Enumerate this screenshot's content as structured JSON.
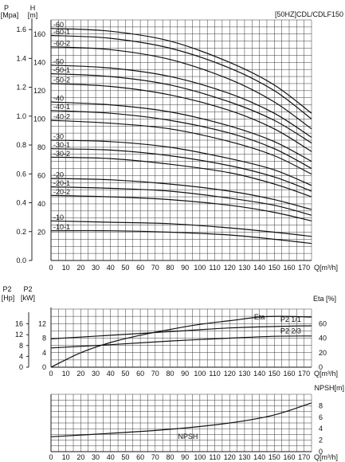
{
  "title": "[50HZ]CDL/CDLF150",
  "chart_data": [
    {
      "type": "line",
      "name": "head",
      "title": "[50HZ]CDL/CDLF150",
      "xlabel": "Q[m³/h]",
      "x_ticks": [
        0,
        10,
        20,
        30,
        40,
        50,
        60,
        70,
        80,
        90,
        100,
        110,
        120,
        130,
        140,
        150,
        160,
        170
      ],
      "xlim": [
        0,
        175
      ],
      "y_left_label": [
        "P",
        "[Mpa]"
      ],
      "y_left_ticks": [
        "0.0",
        "0.2",
        "0.4",
        "0.6",
        "0.8",
        "1.0",
        "1.2",
        "1.4",
        "1.6"
      ],
      "y_right_label": [
        "H",
        "[m]"
      ],
      "y_right_ticks": [
        "20",
        "40",
        "60",
        "80",
        "100",
        "120",
        "140",
        "160"
      ],
      "ylim": [
        0,
        170
      ],
      "grid": true,
      "series": [
        {
          "name": "-60",
          "points": [
            [
              0,
              164
            ],
            [
              40,
              162
            ],
            [
              80,
              155
            ],
            [
              120,
              140
            ],
            [
              150,
              124
            ],
            [
              175,
              104
            ]
          ]
        },
        {
          "name": "-60-1",
          "points": [
            [
              0,
              159
            ],
            [
              40,
              157
            ],
            [
              80,
              150
            ],
            [
              120,
              136
            ],
            [
              150,
              120
            ],
            [
              175,
              100
            ]
          ]
        },
        {
          "name": "-60-2",
          "points": [
            [
              0,
              151
            ],
            [
              40,
              149
            ],
            [
              80,
              142
            ],
            [
              120,
              128
            ],
            [
              150,
              112
            ],
            [
              175,
              93
            ]
          ]
        },
        {
          "name": "-50",
          "points": [
            [
              0,
              138
            ],
            [
              40,
              136
            ],
            [
              80,
              130
            ],
            [
              120,
              118
            ],
            [
              150,
              104
            ],
            [
              175,
              87
            ]
          ]
        },
        {
          "name": "-50-1",
          "points": [
            [
              0,
              132
            ],
            [
              40,
              130
            ],
            [
              80,
              124
            ],
            [
              120,
              112
            ],
            [
              150,
              99
            ],
            [
              175,
              83
            ]
          ]
        },
        {
          "name": "-50-2",
          "points": [
            [
              0,
              125
            ],
            [
              40,
              123
            ],
            [
              80,
              117
            ],
            [
              120,
              106
            ],
            [
              150,
              93
            ],
            [
              175,
              77
            ]
          ]
        },
        {
          "name": "-40",
          "points": [
            [
              0,
              112
            ],
            [
              40,
              110
            ],
            [
              80,
              105
            ],
            [
              120,
              95
            ],
            [
              150,
              84
            ],
            [
              175,
              70
            ]
          ]
        },
        {
          "name": "-40-1",
          "points": [
            [
              0,
              106
            ],
            [
              40,
              104
            ],
            [
              80,
              99
            ],
            [
              120,
              90
            ],
            [
              150,
              79
            ],
            [
              175,
              65
            ]
          ]
        },
        {
          "name": "-40-2",
          "points": [
            [
              0,
              99
            ],
            [
              40,
              97
            ],
            [
              80,
              93
            ],
            [
              120,
              84
            ],
            [
              150,
              74
            ],
            [
              175,
              61
            ]
          ]
        },
        {
          "name": "-30",
          "points": [
            [
              0,
              85
            ],
            [
              40,
              84
            ],
            [
              80,
              80
            ],
            [
              120,
              72
            ],
            [
              150,
              64
            ],
            [
              175,
              53
            ]
          ]
        },
        {
          "name": "-30-1",
          "points": [
            [
              0,
              79
            ],
            [
              40,
              78
            ],
            [
              80,
              74
            ],
            [
              120,
              67
            ],
            [
              150,
              59
            ],
            [
              175,
              49
            ]
          ]
        },
        {
          "name": "-30-2",
          "points": [
            [
              0,
              73
            ],
            [
              40,
              72
            ],
            [
              80,
              68
            ],
            [
              120,
              62
            ],
            [
              150,
              54
            ],
            [
              175,
              45
            ]
          ]
        },
        {
          "name": "-20",
          "points": [
            [
              0,
              58
            ],
            [
              40,
              57
            ],
            [
              80,
              54
            ],
            [
              120,
              49
            ],
            [
              150,
              43
            ],
            [
              175,
              36
            ]
          ]
        },
        {
          "name": "-20-1",
          "points": [
            [
              0,
              52
            ],
            [
              40,
              51
            ],
            [
              80,
              49
            ],
            [
              120,
              44
            ],
            [
              150,
              39
            ],
            [
              175,
              32
            ]
          ]
        },
        {
          "name": "-20-2",
          "points": [
            [
              0,
              46
            ],
            [
              40,
              45
            ],
            [
              80,
              43
            ],
            [
              120,
              39
            ],
            [
              150,
              34
            ],
            [
              175,
              28
            ]
          ]
        },
        {
          "name": "-10",
          "points": [
            [
              0,
              28
            ],
            [
              40,
              27
            ],
            [
              80,
              26
            ],
            [
              120,
              23
            ],
            [
              150,
              20
            ],
            [
              175,
              17
            ]
          ]
        },
        {
          "name": "-10-1",
          "points": [
            [
              0,
              21
            ],
            [
              40,
              21
            ],
            [
              80,
              20
            ],
            [
              120,
              18
            ],
            [
              150,
              15
            ],
            [
              175,
              12
            ]
          ]
        }
      ]
    },
    {
      "type": "line",
      "name": "power-efficiency",
      "xlabel": "Q[m³/h]",
      "x_ticks": [
        0,
        10,
        20,
        30,
        40,
        50,
        60,
        70,
        80,
        90,
        100,
        110,
        120,
        130,
        140,
        150,
        160,
        170
      ],
      "xlim": [
        0,
        175
      ],
      "y_left_label": [
        "P2",
        "[Hp]"
      ],
      "y_left_ticks": [
        "0",
        "4",
        "8",
        "12",
        "16"
      ],
      "y_left2_label": [
        "P2",
        "[kW]"
      ],
      "y_left2_ticks": [
        "0",
        "4",
        "8",
        "12"
      ],
      "y_right_label": "Eta [%]",
      "y_right_ticks": [
        "0",
        "20",
        "40",
        "60"
      ],
      "y_right_lim": [
        0,
        80
      ],
      "grid": true,
      "series": [
        {
          "name": "Eta",
          "label": "Eta",
          "axis": "eta",
          "points": [
            [
              0,
              0
            ],
            [
              20,
              20
            ],
            [
              40,
              34
            ],
            [
              60,
              44
            ],
            [
              80,
              52
            ],
            [
              100,
              59
            ],
            [
              120,
              64
            ],
            [
              140,
              69
            ],
            [
              155,
              70
            ],
            [
              175,
              69
            ]
          ]
        },
        {
          "name": "P2 1/1",
          "label": "P2 1/1",
          "axis": "power",
          "points": [
            [
              0,
              7.8
            ],
            [
              40,
              8.8
            ],
            [
              80,
              9.8
            ],
            [
              120,
              10.8
            ],
            [
              150,
              11.2
            ],
            [
              175,
              11.4
            ]
          ]
        },
        {
          "name": "P2 2/3",
          "label": "P2 2/3",
          "axis": "power",
          "points": [
            [
              0,
              5.3
            ],
            [
              40,
              6.2
            ],
            [
              80,
              7.2
            ],
            [
              120,
              8.0
            ],
            [
              150,
              8.5
            ],
            [
              175,
              8.6
            ]
          ]
        }
      ]
    },
    {
      "type": "line",
      "name": "npsh",
      "xlabel": "Q[m³/h]",
      "x_ticks": [
        0,
        10,
        20,
        30,
        40,
        50,
        60,
        70,
        80,
        90,
        100,
        110,
        120,
        130,
        140,
        150,
        160,
        170
      ],
      "xlim": [
        0,
        175
      ],
      "y_right_label": "NPSH[m]",
      "y_right_ticks": [
        "0",
        "2",
        "4",
        "6",
        "8"
      ],
      "ylim": [
        0,
        10
      ],
      "grid": true,
      "series": [
        {
          "name": "NPSH",
          "label": "NPSH",
          "points": [
            [
              0,
              2.6
            ],
            [
              40,
              3.2
            ],
            [
              80,
              3.9
            ],
            [
              120,
              5.0
            ],
            [
              150,
              6.4
            ],
            [
              175,
              8.5
            ]
          ]
        }
      ]
    }
  ]
}
